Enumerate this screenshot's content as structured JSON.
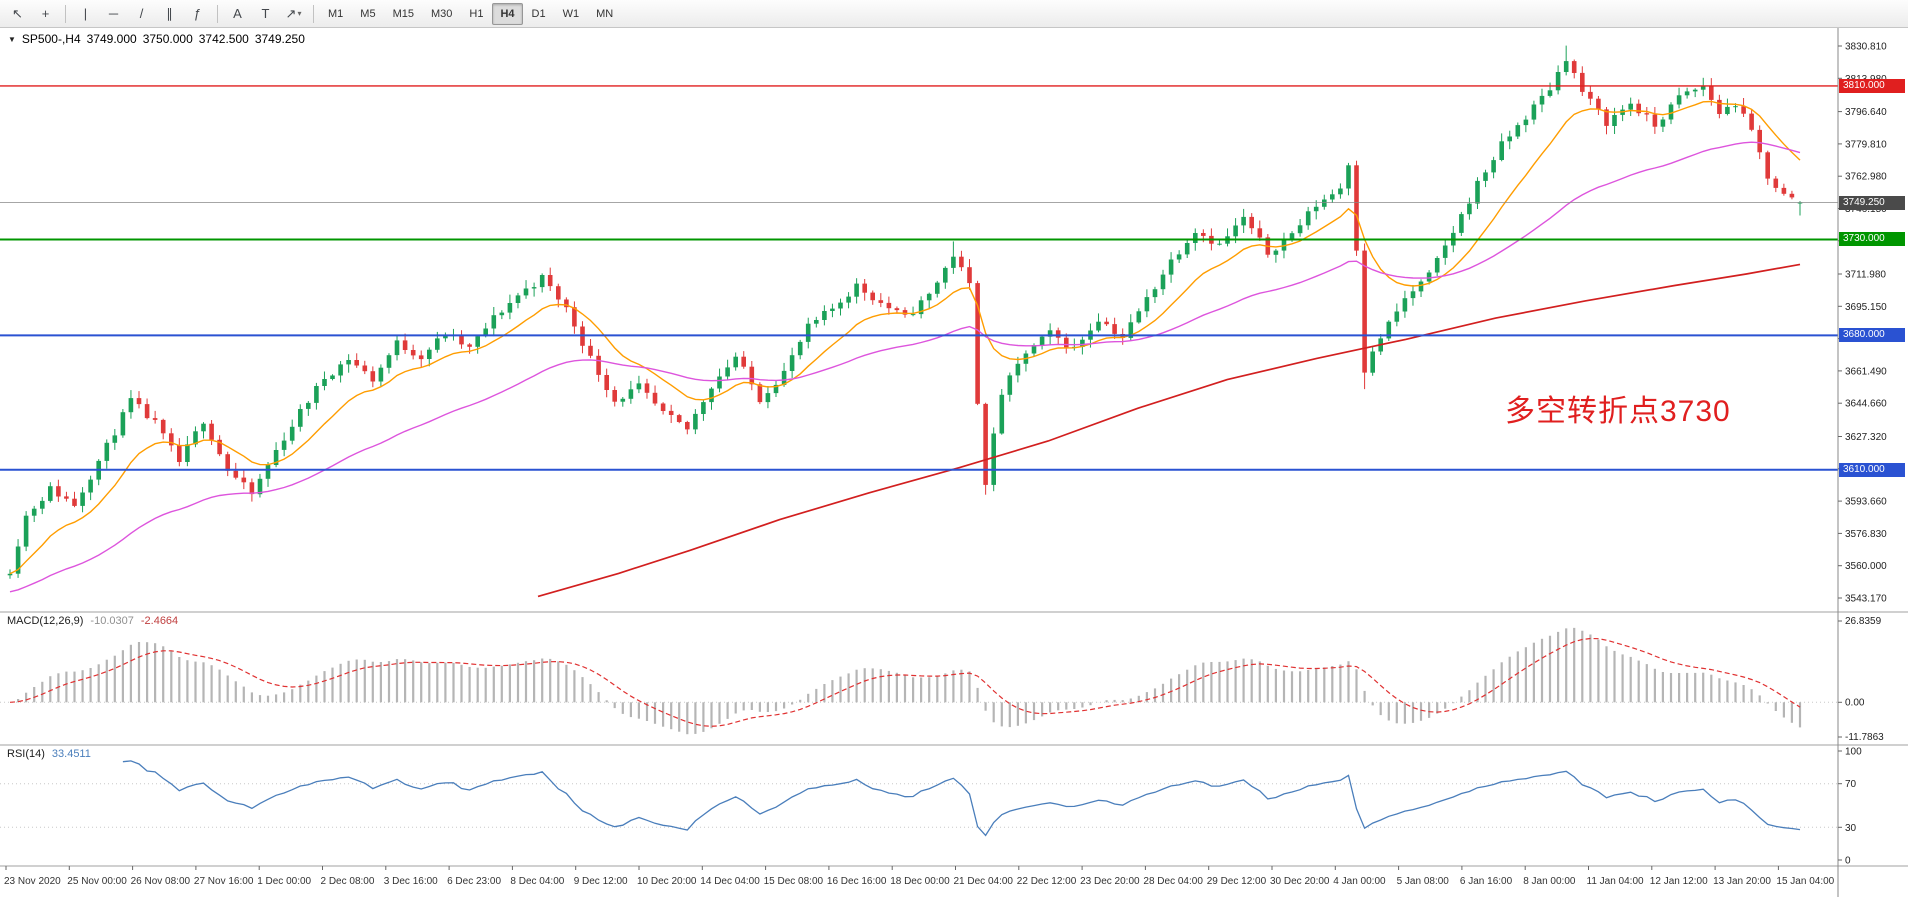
{
  "toolbar": {
    "cursor_tools": [
      {
        "name": "cursor",
        "glyph": "↖"
      },
      {
        "name": "crosshair",
        "glyph": "+"
      }
    ],
    "line_tools": [
      {
        "name": "vertical-line",
        "glyph": "|"
      },
      {
        "name": "horizontal-line",
        "glyph": "─"
      },
      {
        "name": "trendline",
        "glyph": "/"
      },
      {
        "name": "equidistant-channel",
        "glyph": "∥"
      },
      {
        "name": "fibonacci-retracement",
        "glyph": "ƒ"
      }
    ],
    "object_tools": [
      {
        "name": "text",
        "glyph": "A"
      },
      {
        "name": "text-label",
        "glyph": "T"
      },
      {
        "name": "arrow-objects",
        "glyph": "↗",
        "dropdown": true
      }
    ],
    "timeframes": [
      {
        "label": "M1"
      },
      {
        "label": "M5"
      },
      {
        "label": "M15"
      },
      {
        "label": "M30"
      },
      {
        "label": "H1"
      },
      {
        "label": "H4",
        "active": true
      },
      {
        "label": "D1"
      },
      {
        "label": "W1"
      },
      {
        "label": "MN"
      }
    ]
  },
  "chart": {
    "header": {
      "expand_glyph": "▼",
      "symbol": "SP500-,H4",
      "open": "3749.000",
      "high": "3750.000",
      "low": "3742.500",
      "close": "3749.250"
    },
    "annotation": {
      "text": "多空转折点3730",
      "color": "#e01f1f"
    },
    "price_axis": {
      "labels": [
        "3830.810",
        "3813.980",
        "3796.640",
        "3779.810",
        "3762.980",
        "3746.150",
        "3729.320",
        "3711.980",
        "3695.150",
        "3678.320",
        "3661.490",
        "3644.660",
        "3627.320",
        "3610.490",
        "3593.660",
        "3576.830",
        "3560.000",
        "3543.170"
      ]
    },
    "levels": [
      {
        "price": 3810.0,
        "label": "3810.000",
        "color": "#e01f1f",
        "width": 1.4
      },
      {
        "price": 3730.0,
        "label": "3730.000",
        "color": "#009600",
        "width": 2
      },
      {
        "price": 3680.0,
        "label": "3680.000",
        "color": "#2a52d2",
        "width": 2
      },
      {
        "price": 3610.0,
        "label": "3610.000",
        "color": "#2a52d2",
        "width": 2
      }
    ],
    "current_price": {
      "value": 3749.25,
      "label": "3749.250",
      "tag_color": "#4a4a4a",
      "line_color": "#888888"
    },
    "time_axis": [
      "23 Nov 2020",
      "25 Nov 00:00",
      "26 Nov 08:00",
      "27 Nov 16:00",
      "1 Dec 00:00",
      "2 Dec 08:00",
      "3 Dec 16:00",
      "6 Dec 23:00",
      "8 Dec 04:00",
      "9 Dec 12:00",
      "10 Dec 20:00",
      "14 Dec 04:00",
      "15 Dec 08:00",
      "16 Dec 16:00",
      "18 Dec 00:00",
      "21 Dec 04:00",
      "22 Dec 12:00",
      "23 Dec 20:00",
      "28 Dec 04:00",
      "29 Dec 12:00",
      "30 Dec 20:00",
      "4 Jan 00:00",
      "5 Jan 08:00",
      "6 Jan 16:00",
      "8 Jan 00:00",
      "11 Jan 04:00",
      "12 Jan 12:00",
      "13 Jan 20:00",
      "15 Jan 04:00"
    ]
  },
  "macd": {
    "title": "MACD(12,26,9)",
    "value": "-10.0307",
    "signal": "-2.4664",
    "axis_top": "26.8359",
    "axis_zero": "0.00",
    "axis_bottom": "-11.7863",
    "histogram_color": "#b5b5b5",
    "signal_color": "#e03131",
    "fast": 12,
    "slow": 26,
    "smoothing": 9
  },
  "rsi": {
    "title": "RSI(14)",
    "value": "33.4511",
    "period": 14,
    "color": "#4a7ebb",
    "levels": [
      70,
      30
    ],
    "axis": [
      "100",
      "70",
      "30",
      "0"
    ]
  },
  "chart_data": {
    "type": "candlestick",
    "symbol": "SP500-",
    "timeframe": "H4",
    "bars": 223,
    "up_color": "#1ba158",
    "down_color": "#e03a3a",
    "price_min": 3543.17,
    "price_max": 3830.81,
    "last_candle": [
      3749.0,
      3750.0,
      3742.5,
      3749.25
    ],
    "close_path_anchors": [
      [
        0,
        3558
      ],
      [
        2,
        3586
      ],
      [
        5,
        3600
      ],
      [
        8,
        3592
      ],
      [
        12,
        3622
      ],
      [
        15,
        3646
      ],
      [
        18,
        3634
      ],
      [
        21,
        3614
      ],
      [
        24,
        3636
      ],
      [
        27,
        3610
      ],
      [
        30,
        3597
      ],
      [
        33,
        3620
      ],
      [
        36,
        3640
      ],
      [
        39,
        3658
      ],
      [
        42,
        3668
      ],
      [
        45,
        3657
      ],
      [
        48,
        3676
      ],
      [
        51,
        3669
      ],
      [
        54,
        3681
      ],
      [
        57,
        3673
      ],
      [
        60,
        3689
      ],
      [
        63,
        3701
      ],
      [
        66,
        3710
      ],
      [
        69,
        3694
      ],
      [
        72,
        3668
      ],
      [
        75,
        3646
      ],
      [
        78,
        3653
      ],
      [
        81,
        3639
      ],
      [
        84,
        3631
      ],
      [
        87,
        3654
      ],
      [
        90,
        3669
      ],
      [
        93,
        3647
      ],
      [
        96,
        3661
      ],
      [
        99,
        3684
      ],
      [
        102,
        3694
      ],
      [
        105,
        3706
      ],
      [
        108,
        3697
      ],
      [
        111,
        3689
      ],
      [
        114,
        3701
      ],
      [
        117,
        3722
      ],
      [
        119,
        3706
      ],
      [
        120,
        3646
      ],
      [
        121,
        3604
      ],
      [
        123,
        3650
      ],
      [
        126,
        3671
      ],
      [
        129,
        3681
      ],
      [
        132,
        3673
      ],
      [
        135,
        3689
      ],
      [
        138,
        3679
      ],
      [
        141,
        3699
      ],
      [
        144,
        3719
      ],
      [
        147,
        3735
      ],
      [
        150,
        3727
      ],
      [
        153,
        3741
      ],
      [
        156,
        3723
      ],
      [
        159,
        3733
      ],
      [
        162,
        3748
      ],
      [
        165,
        3757
      ],
      [
        166,
        3770
      ],
      [
        167,
        3726
      ],
      [
        168,
        3662
      ],
      [
        170,
        3679
      ],
      [
        173,
        3699
      ],
      [
        176,
        3711
      ],
      [
        179,
        3734
      ],
      [
        182,
        3759
      ],
      [
        185,
        3779
      ],
      [
        188,
        3794
      ],
      [
        191,
        3809
      ],
      [
        193,
        3825
      ],
      [
        195,
        3807
      ],
      [
        198,
        3791
      ],
      [
        201,
        3801
      ],
      [
        204,
        3789
      ],
      [
        207,
        3804
      ],
      [
        210,
        3810
      ],
      [
        212,
        3796
      ],
      [
        214,
        3801
      ],
      [
        216,
        3786
      ],
      [
        218,
        3763
      ],
      [
        220,
        3753
      ],
      [
        222,
        3749.25
      ]
    ],
    "wick_extremes": [
      [
        117,
        "h",
        3729
      ],
      [
        121,
        "l",
        3597
      ],
      [
        168,
        "l",
        3652
      ],
      [
        193,
        "h",
        3831
      ]
    ],
    "moving_averages": {
      "fast": {
        "period": 12,
        "color": "#ff9d00"
      },
      "medium": {
        "period": 45,
        "color": "#dd55dd",
        "seed": 3546
      },
      "slow": {
        "color": "#d21f1f",
        "anchors": [
          [
            0.295,
            3544
          ],
          [
            0.34,
            3556
          ],
          [
            0.38,
            3568
          ],
          [
            0.43,
            3584
          ],
          [
            0.48,
            3598
          ],
          [
            0.53,
            3611
          ],
          [
            0.58,
            3625
          ],
          [
            0.63,
            3642
          ],
          [
            0.68,
            3657
          ],
          [
            0.73,
            3668
          ],
          [
            0.78,
            3678
          ],
          [
            0.83,
            3689
          ],
          [
            0.88,
            3698
          ],
          [
            0.93,
            3706
          ],
          [
            0.97,
            3712
          ],
          [
            1.0,
            3717
          ]
        ]
      }
    }
  }
}
